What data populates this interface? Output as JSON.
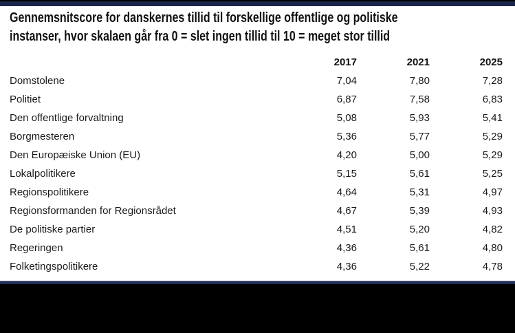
{
  "slide": {
    "top_bar_color": "#1c2549",
    "accent_line_color": "#232d55",
    "bottom_bar_color": "#000000"
  },
  "chart_data": {
    "type": "table",
    "title": "Gennemsnitscore for danskernes tillid til forskellige offentlige og politiske\ninstanser, hvor skalaen går fra 0 = slet ingen tillid til 10 = meget stor tillid",
    "scale_min_label": "0 = slet ingen tillid",
    "scale_max_label": "10 = meget stor tillid",
    "columns": [
      "2017",
      "2021",
      "2025"
    ],
    "rows": [
      {
        "label": "Domstolene",
        "values": [
          "7,04",
          "7,80",
          "7,28"
        ]
      },
      {
        "label": "Politiet",
        "values": [
          "6,87",
          "7,58",
          "6,83"
        ]
      },
      {
        "label": "Den offentlige forvaltning",
        "values": [
          "5,08",
          "5,93",
          "5,41"
        ]
      },
      {
        "label": "Borgmesteren",
        "values": [
          "5,36",
          "5,77",
          "5,29"
        ]
      },
      {
        "label": "Den Europæiske Union (EU)",
        "values": [
          "4,20",
          "5,00",
          "5,29"
        ]
      },
      {
        "label": "Lokalpolitikere",
        "values": [
          "5,15",
          "5,61",
          "5,25"
        ]
      },
      {
        "label": "Regionspolitikere",
        "values": [
          "4,64",
          "5,31",
          "4,97"
        ]
      },
      {
        "label": "Regionsformanden for Regionsrådet",
        "values": [
          "4,67",
          "5,39",
          "4,93"
        ]
      },
      {
        "label": "De politiske partier",
        "values": [
          "4,51",
          "5,20",
          "4,82"
        ]
      },
      {
        "label": "Regeringen",
        "values": [
          "4,36",
          "5,61",
          "4,80"
        ]
      },
      {
        "label": "Folketingspolitikere",
        "values": [
          "4,36",
          "5,22",
          "4,78"
        ]
      }
    ]
  }
}
